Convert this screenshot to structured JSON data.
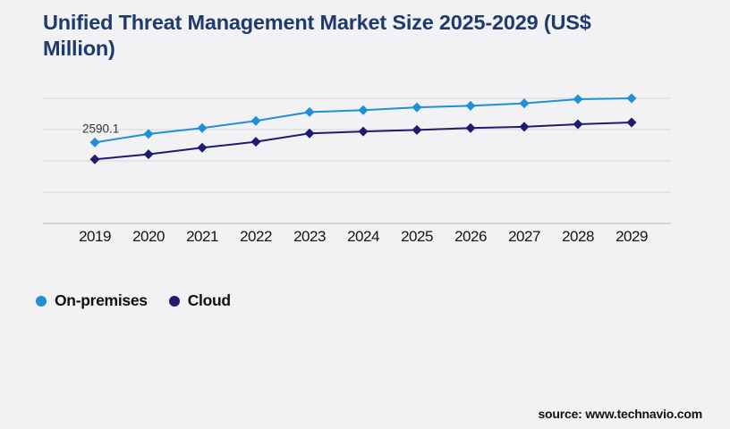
{
  "header": {
    "title_line1": "Unified Threat Management Market Size 2025-2029 (US$",
    "title_line2": "Million)"
  },
  "footer": {
    "source": "source: www.technavio.com"
  },
  "legend": [
    {
      "label": "On-premises",
      "color": "#1f8fd6"
    },
    {
      "label": "Cloud",
      "color": "#1f1b6e"
    }
  ],
  "chart_data": {
    "type": "line",
    "title": "Unified Threat Management Market Size 2025-2029 (US$ Million)",
    "categories": [
      "2019",
      "2020",
      "2021",
      "2022",
      "2023",
      "2024",
      "2025",
      "2026",
      "2027",
      "2028",
      "2029"
    ],
    "series": [
      {
        "name": "On-premises",
        "color": "#1f8fd6",
        "marker": "diamond",
        "values": [
          2590.1,
          2860,
          3050,
          3280,
          3560,
          3620,
          3710,
          3760,
          3840,
          3970,
          4000
        ]
      },
      {
        "name": "Cloud",
        "color": "#1f1b6e",
        "marker": "diamond",
        "values": [
          2050,
          2210,
          2420,
          2610,
          2880,
          2940,
          2990,
          3050,
          3090,
          3170,
          3230
        ]
      }
    ],
    "annotation": {
      "series": "On-premises",
      "category": "2019",
      "text": "2590.1"
    },
    "xlabel": "",
    "ylabel": "",
    "ylim": [
      0,
      4000
    ],
    "y_gridline_step": 1000,
    "y_axis_labels_visible": false,
    "grid": true,
    "legend_position": "bottom-left"
  },
  "colors": {
    "background": "#f2f2f4",
    "title": "#1f3b6d",
    "gridline": "#d6d6da",
    "axis_line": "#b9b9bf",
    "tick_text": "#141414"
  }
}
